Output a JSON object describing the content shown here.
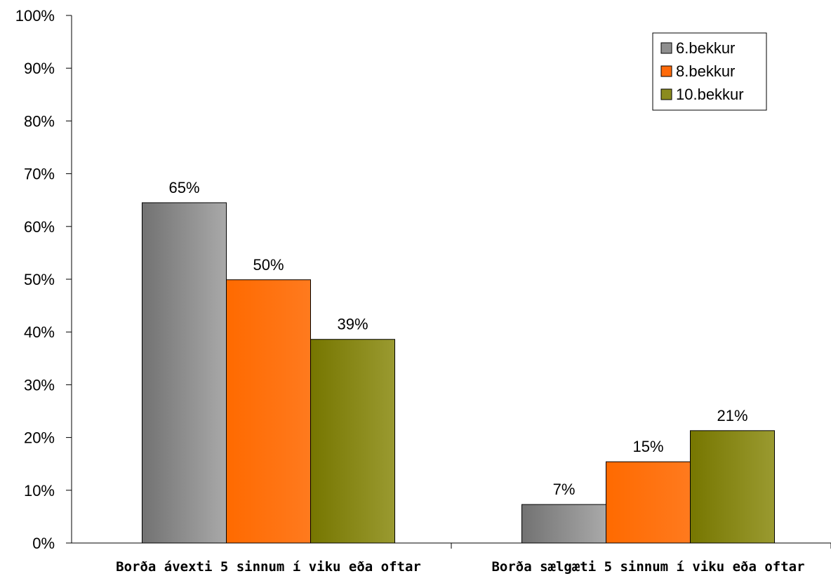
{
  "chart_data": {
    "type": "bar",
    "title": "",
    "xlabel": "",
    "ylabel": "",
    "ylim": [
      0,
      100
    ],
    "y_ticks": [
      0,
      10,
      20,
      30,
      40,
      50,
      60,
      70,
      80,
      90,
      100
    ],
    "y_tick_labels": [
      "0%",
      "10%",
      "20%",
      "30%",
      "40%",
      "50%",
      "60%",
      "70%",
      "80%",
      "90%",
      "100%"
    ],
    "categories": [
      "Borða ávexti 5 sinnum í viku eða oftar",
      "Borða sælgæti 5 sinnum í viku eða oftar"
    ],
    "series": [
      {
        "name": "6.bekkur",
        "values": [
          64.5,
          7.3
        ],
        "labels": [
          "65%",
          "7%"
        ],
        "color": "#8f8f8f"
      },
      {
        "name": "8.bekkur",
        "values": [
          49.9,
          15.4
        ],
        "labels": [
          "50%",
          "15%"
        ],
        "color": "#ff6a0a"
      },
      {
        "name": "10.bekkur",
        "values": [
          38.6,
          21.3
        ],
        "labels": [
          "39%",
          "21%"
        ],
        "color": "#8b8b1e"
      }
    ],
    "grid": false,
    "legend_position": "top-right"
  }
}
